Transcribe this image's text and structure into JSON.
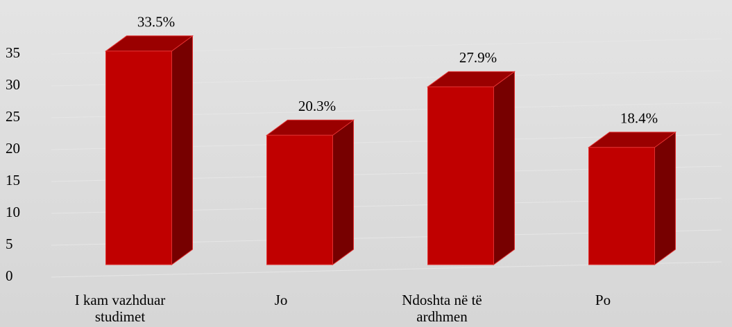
{
  "chart_data": {
    "type": "bar",
    "categories": [
      "I kam vazhduar studimet",
      "Jo",
      "Ndoshta në të ardhmen",
      "Po"
    ],
    "values": [
      33.5,
      20.3,
      27.9,
      18.4
    ],
    "value_labels": [
      "33.5%",
      "20.3%",
      "27.9%",
      "18.4%"
    ],
    "color": "#c00000",
    "ylim": [
      0,
      40
    ],
    "yticks": [
      0,
      5,
      10,
      15,
      20,
      25,
      30,
      35
    ],
    "grid": true
  }
}
